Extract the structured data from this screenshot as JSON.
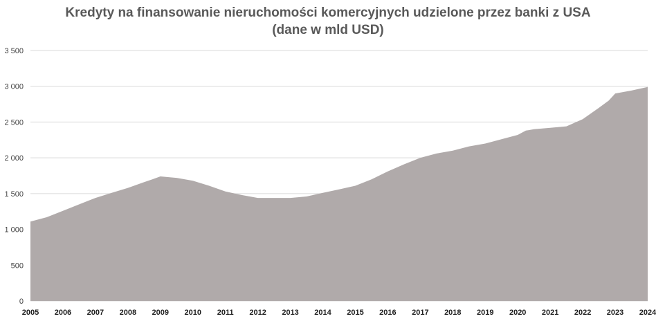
{
  "title_lines": [
    "Kredyty na finansowanie nieruchomości komercyjnych udzielone przez banki z USA",
    "(dane w mld USD)"
  ],
  "colors": {
    "area": "#b0aaaa",
    "grid": "#d9d9d9",
    "text": "#595959"
  },
  "chart_data": {
    "type": "area",
    "title": "Kredyty na finansowanie nieruchomości komercyjnych udzielone przez banki z USA (dane w mld USD)",
    "xlabel": "",
    "ylabel": "",
    "xlim": [
      2005,
      2024
    ],
    "ylim": [
      0,
      3500
    ],
    "grid": true,
    "legend": "none",
    "y_ticks": [
      0,
      500,
      1000,
      1500,
      2000,
      2500,
      3000,
      3500
    ],
    "y_tick_labels": [
      "0",
      "500",
      "1 000",
      "1 500",
      "2 000",
      "2 500",
      "3 000",
      "3 500"
    ],
    "x_ticks": [
      "2005",
      "2006",
      "2007",
      "2008",
      "2009",
      "2010",
      "2011",
      "2012",
      "2013",
      "2014",
      "2015",
      "2016",
      "2017",
      "2018",
      "2019",
      "2020",
      "2021",
      "2022",
      "2023",
      "2024"
    ],
    "x": [
      2005.0,
      2005.5,
      2006.0,
      2006.5,
      2007.0,
      2007.5,
      2008.0,
      2008.5,
      2008.75,
      2009.0,
      2009.5,
      2010.0,
      2010.5,
      2011.0,
      2011.5,
      2012.0,
      2012.5,
      2013.0,
      2013.5,
      2014.0,
      2014.5,
      2015.0,
      2015.5,
      2016.0,
      2016.5,
      2017.0,
      2017.5,
      2018.0,
      2018.5,
      2019.0,
      2019.5,
      2020.0,
      2020.25,
      2020.5,
      2021.0,
      2021.5,
      2022.0,
      2022.5,
      2022.8,
      2023.0,
      2023.25,
      2023.5,
      2024.0
    ],
    "y": [
      1110,
      1170,
      1260,
      1350,
      1440,
      1510,
      1580,
      1660,
      1700,
      1740,
      1720,
      1680,
      1610,
      1530,
      1480,
      1440,
      1440,
      1440,
      1460,
      1510,
      1560,
      1610,
      1700,
      1810,
      1910,
      2000,
      2060,
      2100,
      2160,
      2200,
      2260,
      2320,
      2380,
      2400,
      2420,
      2440,
      2540,
      2700,
      2800,
      2900,
      2920,
      2940,
      2990
    ]
  }
}
